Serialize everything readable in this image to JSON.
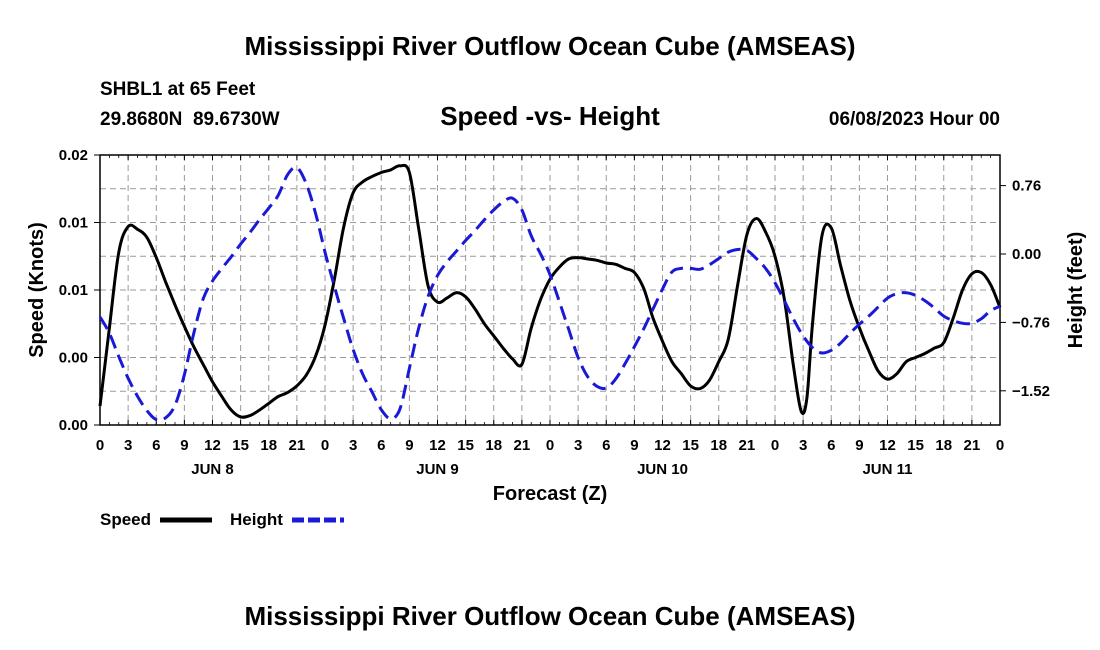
{
  "page": {
    "title": "Mississippi River Outflow Ocean Cube (AMSEAS)",
    "bottom_title": "Mississippi River Outflow Ocean Cube (AMSEAS)"
  },
  "header": {
    "station": "SHBL1 at 65 Feet",
    "coords": "29.8680N  89.6730W",
    "date": "06/08/2023 Hour 00"
  },
  "legend": {
    "speed_label": "Speed",
    "height_label": "Height"
  },
  "colors": {
    "speed": "#000000",
    "height": "#1a1ad6",
    "grid": "#9a9a9a"
  },
  "chart_data": {
    "type": "line",
    "title": "Speed -vs- Height",
    "xlabel": "Forecast (Z)",
    "ylabel_left": "Speed (Knots)",
    "ylabel_right": "Height (feet)",
    "x_range_hours": [
      0,
      96
    ],
    "ylim_left": [
      0.0,
      0.02
    ],
    "ylim_right": [
      -1.9,
      1.1
    ],
    "y_ticks_left": [
      {
        "value": 0.0,
        "label": "0.00"
      },
      {
        "value": 0.005,
        "label": "0.00"
      },
      {
        "value": 0.01,
        "label": "0.01"
      },
      {
        "value": 0.015,
        "label": "0.01"
      },
      {
        "value": 0.02,
        "label": "0.02"
      }
    ],
    "y_ticks_right": [
      {
        "value": 0.76,
        "label": "0.76"
      },
      {
        "value": 0.0,
        "label": "0.00"
      },
      {
        "value": -0.76,
        "label": "−0.76"
      },
      {
        "value": -1.52,
        "label": "−1.52"
      }
    ],
    "x_ticks": [
      {
        "hour": 0,
        "label": "0"
      },
      {
        "hour": 3,
        "label": "3"
      },
      {
        "hour": 6,
        "label": "6"
      },
      {
        "hour": 9,
        "label": "9"
      },
      {
        "hour": 12,
        "label": "12"
      },
      {
        "hour": 15,
        "label": "15"
      },
      {
        "hour": 18,
        "label": "18"
      },
      {
        "hour": 21,
        "label": "21"
      },
      {
        "hour": 24,
        "label": "0"
      },
      {
        "hour": 27,
        "label": "3"
      },
      {
        "hour": 30,
        "label": "6"
      },
      {
        "hour": 33,
        "label": "9"
      },
      {
        "hour": 36,
        "label": "12"
      },
      {
        "hour": 39,
        "label": "15"
      },
      {
        "hour": 42,
        "label": "18"
      },
      {
        "hour": 45,
        "label": "21"
      },
      {
        "hour": 48,
        "label": "0"
      },
      {
        "hour": 51,
        "label": "3"
      },
      {
        "hour": 54,
        "label": "6"
      },
      {
        "hour": 57,
        "label": "9"
      },
      {
        "hour": 60,
        "label": "12"
      },
      {
        "hour": 63,
        "label": "15"
      },
      {
        "hour": 66,
        "label": "18"
      },
      {
        "hour": 69,
        "label": "21"
      },
      {
        "hour": 72,
        "label": "0"
      },
      {
        "hour": 75,
        "label": "3"
      },
      {
        "hour": 78,
        "label": "6"
      },
      {
        "hour": 81,
        "label": "9"
      },
      {
        "hour": 84,
        "label": "12"
      },
      {
        "hour": 87,
        "label": "15"
      },
      {
        "hour": 90,
        "label": "18"
      },
      {
        "hour": 93,
        "label": "21"
      },
      {
        "hour": 96,
        "label": "0"
      }
    ],
    "day_labels": [
      {
        "hour": 12,
        "label": "JUN 8"
      },
      {
        "hour": 36,
        "label": "JUN 9"
      },
      {
        "hour": 60,
        "label": "JUN 10"
      },
      {
        "hour": 84,
        "label": "JUN 11"
      }
    ],
    "series": [
      {
        "name": "Speed",
        "axis": "left",
        "style": "solid",
        "points": [
          [
            0,
            0.0014
          ],
          [
            1,
            0.0072
          ],
          [
            2,
            0.0128
          ],
          [
            3,
            0.0147
          ],
          [
            4,
            0.0145
          ],
          [
            5,
            0.0139
          ],
          [
            6,
            0.0124
          ],
          [
            7,
            0.0106
          ],
          [
            8,
            0.0089
          ],
          [
            9,
            0.0073
          ],
          [
            10,
            0.0058
          ],
          [
            11,
            0.0045
          ],
          [
            12,
            0.0032
          ],
          [
            13,
            0.0021
          ],
          [
            14,
            0.0011
          ],
          [
            15,
            0.0006
          ],
          [
            16,
            0.0007
          ],
          [
            17,
            0.0011
          ],
          [
            18,
            0.0016
          ],
          [
            19,
            0.0021
          ],
          [
            20,
            0.0024
          ],
          [
            21,
            0.0029
          ],
          [
            22,
            0.0037
          ],
          [
            23,
            0.0051
          ],
          [
            24,
            0.0074
          ],
          [
            25,
            0.0108
          ],
          [
            26,
            0.0147
          ],
          [
            27,
            0.0172
          ],
          [
            28,
            0.018
          ],
          [
            29,
            0.0184
          ],
          [
            30,
            0.0187
          ],
          [
            31,
            0.0189
          ],
          [
            32,
            0.0192
          ],
          [
            33,
            0.0187
          ],
          [
            34,
            0.0145
          ],
          [
            35,
            0.0103
          ],
          [
            36,
            0.0091
          ],
          [
            37,
            0.0094
          ],
          [
            38,
            0.0098
          ],
          [
            39,
            0.0095
          ],
          [
            40,
            0.0086
          ],
          [
            41,
            0.0075
          ],
          [
            42,
            0.0066
          ],
          [
            43,
            0.0057
          ],
          [
            44,
            0.0049
          ],
          [
            45,
            0.0045
          ],
          [
            46,
            0.0072
          ],
          [
            47,
            0.0093
          ],
          [
            48,
            0.0108
          ],
          [
            49,
            0.0117
          ],
          [
            50,
            0.0123
          ],
          [
            51,
            0.0124
          ],
          [
            52,
            0.0123
          ],
          [
            53,
            0.0122
          ],
          [
            54,
            0.012
          ],
          [
            55,
            0.0119
          ],
          [
            56,
            0.0116
          ],
          [
            57,
            0.0113
          ],
          [
            58,
            0.0101
          ],
          [
            59,
            0.0079
          ],
          [
            60,
            0.0062
          ],
          [
            61,
            0.0047
          ],
          [
            62,
            0.0038
          ],
          [
            63,
            0.0029
          ],
          [
            64,
            0.0027
          ],
          [
            65,
            0.0033
          ],
          [
            66,
            0.0047
          ],
          [
            67,
            0.0063
          ],
          [
            68,
            0.0103
          ],
          [
            69,
            0.0141
          ],
          [
            70,
            0.0153
          ],
          [
            71,
            0.0143
          ],
          [
            72,
            0.0125
          ],
          [
            73,
            0.0093
          ],
          [
            74,
            0.0042
          ],
          [
            74.8,
            0.001
          ],
          [
            75.4,
            0.002
          ],
          [
            76,
            0.0075
          ],
          [
            77,
            0.014
          ],
          [
            78,
            0.0146
          ],
          [
            79,
            0.0118
          ],
          [
            80,
            0.0092
          ],
          [
            81,
            0.0072
          ],
          [
            82,
            0.0055
          ],
          [
            83,
            0.004
          ],
          [
            84,
            0.0034
          ],
          [
            85,
            0.0038
          ],
          [
            86,
            0.0047
          ],
          [
            87,
            0.005
          ],
          [
            88,
            0.0053
          ],
          [
            89,
            0.0057
          ],
          [
            90,
            0.0061
          ],
          [
            91,
            0.0079
          ],
          [
            92,
            0.01
          ],
          [
            93,
            0.0112
          ],
          [
            94,
            0.0113
          ],
          [
            95,
            0.0104
          ],
          [
            96,
            0.0087
          ]
        ]
      },
      {
        "name": "Height",
        "axis": "right",
        "style": "dashed",
        "points": [
          [
            0,
            -0.7
          ],
          [
            1,
            -0.88
          ],
          [
            2,
            -1.14
          ],
          [
            3,
            -1.38
          ],
          [
            4,
            -1.58
          ],
          [
            5,
            -1.74
          ],
          [
            6,
            -1.84
          ],
          [
            7,
            -1.82
          ],
          [
            8,
            -1.68
          ],
          [
            9,
            -1.34
          ],
          [
            10,
            -0.88
          ],
          [
            11,
            -0.5
          ],
          [
            12,
            -0.3
          ],
          [
            13,
            -0.16
          ],
          [
            14,
            -0.03
          ],
          [
            15,
            0.11
          ],
          [
            16,
            0.24
          ],
          [
            17,
            0.38
          ],
          [
            18,
            0.51
          ],
          [
            19,
            0.65
          ],
          [
            20,
            0.88
          ],
          [
            21,
            0.96
          ],
          [
            22,
            0.78
          ],
          [
            23,
            0.45
          ],
          [
            24,
            0.02
          ],
          [
            25,
            -0.36
          ],
          [
            26,
            -0.72
          ],
          [
            27,
            -1.06
          ],
          [
            28,
            -1.33
          ],
          [
            29,
            -1.53
          ],
          [
            30,
            -1.73
          ],
          [
            31,
            -1.83
          ],
          [
            32,
            -1.72
          ],
          [
            33,
            -1.27
          ],
          [
            34,
            -0.82
          ],
          [
            35,
            -0.47
          ],
          [
            36,
            -0.24
          ],
          [
            37,
            -0.09
          ],
          [
            38,
            0.03
          ],
          [
            39,
            0.15
          ],
          [
            40,
            0.26
          ],
          [
            41,
            0.38
          ],
          [
            42,
            0.49
          ],
          [
            43,
            0.58
          ],
          [
            44,
            0.62
          ],
          [
            45,
            0.49
          ],
          [
            46,
            0.2
          ],
          [
            47,
            0.0
          ],
          [
            48,
            -0.23
          ],
          [
            49,
            -0.53
          ],
          [
            50,
            -0.84
          ],
          [
            51,
            -1.15
          ],
          [
            52,
            -1.36
          ],
          [
            53,
            -1.47
          ],
          [
            54,
            -1.49
          ],
          [
            55,
            -1.39
          ],
          [
            56,
            -1.22
          ],
          [
            57,
            -1.03
          ],
          [
            58,
            -0.83
          ],
          [
            59,
            -0.61
          ],
          [
            60,
            -0.39
          ],
          [
            61,
            -0.2
          ],
          [
            62,
            -0.16
          ],
          [
            63,
            -0.16
          ],
          [
            64,
            -0.17
          ],
          [
            65,
            -0.12
          ],
          [
            66,
            -0.05
          ],
          [
            67,
            0.02
          ],
          [
            68,
            0.05
          ],
          [
            69,
            0.04
          ],
          [
            70,
            -0.05
          ],
          [
            71,
            -0.16
          ],
          [
            72,
            -0.32
          ],
          [
            73,
            -0.52
          ],
          [
            74,
            -0.73
          ],
          [
            75,
            -0.91
          ],
          [
            76,
            -1.04
          ],
          [
            77,
            -1.1
          ],
          [
            78,
            -1.07
          ],
          [
            79,
            -0.99
          ],
          [
            80,
            -0.88
          ],
          [
            81,
            -0.78
          ],
          [
            82,
            -0.69
          ],
          [
            83,
            -0.59
          ],
          [
            84,
            -0.49
          ],
          [
            85,
            -0.44
          ],
          [
            86,
            -0.43
          ],
          [
            87,
            -0.46
          ],
          [
            88,
            -0.52
          ],
          [
            89,
            -0.6
          ],
          [
            90,
            -0.69
          ],
          [
            91,
            -0.74
          ],
          [
            92,
            -0.77
          ],
          [
            93,
            -0.77
          ],
          [
            94,
            -0.72
          ],
          [
            95,
            -0.63
          ],
          [
            96,
            -0.58
          ]
        ]
      }
    ]
  }
}
